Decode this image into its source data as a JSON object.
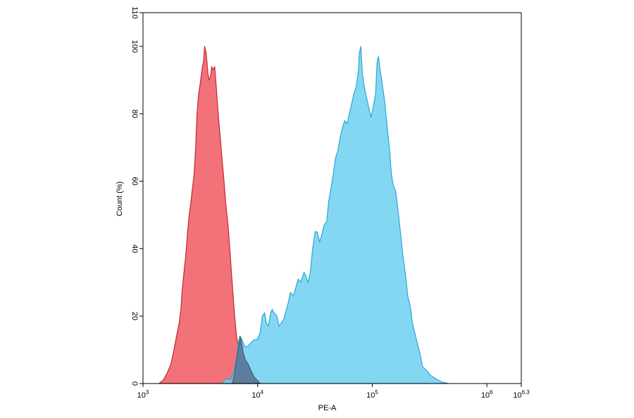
{
  "chart_data": {
    "type": "area",
    "xlabel": "PE-A",
    "ylabel": "Count (%)",
    "x_scale": "log",
    "xlim": [
      1000,
      1995262
    ],
    "ylim": [
      0,
      110
    ],
    "x_ticks": [
      {
        "base": "10",
        "exp": "3",
        "value": 1000
      },
      {
        "base": "10",
        "exp": "4",
        "value": 10000
      },
      {
        "base": "10",
        "exp": "5",
        "value": 100000
      },
      {
        "base": "10",
        "exp": "6",
        "value": 1000000
      },
      {
        "base": "10",
        "exp": "6.3",
        "value": 1995262
      }
    ],
    "y_ticks": [
      {
        "label": "0",
        "value": 0
      },
      {
        "label": "20",
        "value": 20
      },
      {
        "label": "40",
        "value": 40
      },
      {
        "label": "60",
        "value": 60
      },
      {
        "label": "80",
        "value": 80
      },
      {
        "label": "100",
        "value": 100
      },
      {
        "label": "110",
        "value": 110
      }
    ],
    "grid": false,
    "legend": "none",
    "series": [
      {
        "color": "#f2636b",
        "stroke": "#c0282e",
        "opacity": 0.9,
        "points": [
          [
            1380,
            0
          ],
          [
            1500,
            1
          ],
          [
            1620,
            3
          ],
          [
            1760,
            6
          ],
          [
            1860,
            10
          ],
          [
            1960,
            14
          ],
          [
            2070,
            18
          ],
          [
            2140,
            22
          ],
          [
            2200,
            28
          ],
          [
            2280,
            33
          ],
          [
            2360,
            38
          ],
          [
            2450,
            45
          ],
          [
            2530,
            50
          ],
          [
            2600,
            53
          ],
          [
            2680,
            57
          ],
          [
            2790,
            62
          ],
          [
            2880,
            70
          ],
          [
            2960,
            80
          ],
          [
            3060,
            86
          ],
          [
            3160,
            89
          ],
          [
            3270,
            93
          ],
          [
            3380,
            96
          ],
          [
            3450,
            100
          ],
          [
            3560,
            98
          ],
          [
            3680,
            92
          ],
          [
            3780,
            90
          ],
          [
            3880,
            91
          ],
          [
            3980,
            94
          ],
          [
            4100,
            93
          ],
          [
            4220,
            94
          ],
          [
            4400,
            86
          ],
          [
            4550,
            79
          ],
          [
            4720,
            73
          ],
          [
            4880,
            67
          ],
          [
            5060,
            61
          ],
          [
            5280,
            53
          ],
          [
            5520,
            47
          ],
          [
            5800,
            37
          ],
          [
            6050,
            28
          ],
          [
            6300,
            20
          ],
          [
            6550,
            14
          ],
          [
            6800,
            11
          ],
          [
            7100,
            9
          ],
          [
            7400,
            7
          ],
          [
            7800,
            5
          ],
          [
            8300,
            4
          ],
          [
            8800,
            3
          ],
          [
            9500,
            1.5
          ],
          [
            10500,
            0
          ]
        ]
      },
      {
        "color": "#6fd0f1",
        "stroke": "#2aa6d1",
        "opacity": 0.85,
        "points": [
          [
            4900,
            0
          ],
          [
            5200,
            1
          ],
          [
            5500,
            1.5
          ],
          [
            5800,
            1
          ],
          [
            6150,
            3
          ],
          [
            6500,
            7
          ],
          [
            6800,
            12
          ],
          [
            7000,
            14
          ],
          [
            7300,
            13
          ],
          [
            7700,
            11
          ],
          [
            8200,
            11
          ],
          [
            8700,
            12
          ],
          [
            9300,
            13
          ],
          [
            9900,
            13
          ],
          [
            10500,
            15
          ],
          [
            11000,
            20
          ],
          [
            11500,
            21
          ],
          [
            11900,
            18
          ],
          [
            12400,
            17
          ],
          [
            13000,
            21
          ],
          [
            13400,
            22
          ],
          [
            13900,
            21
          ],
          [
            14700,
            20
          ],
          [
            15400,
            17
          ],
          [
            16100,
            18
          ],
          [
            16900,
            19
          ],
          [
            17500,
            21
          ],
          [
            18500,
            24
          ],
          [
            19300,
            27
          ],
          [
            20500,
            26
          ],
          [
            21300,
            28
          ],
          [
            22600,
            31
          ],
          [
            23800,
            30
          ],
          [
            25400,
            33
          ],
          [
            26300,
            32
          ],
          [
            27500,
            30
          ],
          [
            28800,
            33
          ],
          [
            30200,
            40
          ],
          [
            31700,
            45
          ],
          [
            33100,
            45
          ],
          [
            34700,
            42
          ],
          [
            36300,
            44
          ],
          [
            38000,
            47
          ],
          [
            40000,
            48
          ],
          [
            41700,
            54
          ],
          [
            43600,
            58
          ],
          [
            45700,
            62
          ],
          [
            47900,
            67
          ],
          [
            50100,
            69
          ],
          [
            52500,
            73
          ],
          [
            55000,
            76
          ],
          [
            57500,
            78
          ],
          [
            60300,
            77
          ],
          [
            63100,
            80
          ],
          [
            66100,
            83
          ],
          [
            69200,
            86
          ],
          [
            72500,
            88
          ],
          [
            75800,
            93
          ],
          [
            77000,
            98
          ],
          [
            79400,
            100
          ],
          [
            82000,
            92
          ],
          [
            85000,
            88
          ],
          [
            89000,
            85
          ],
          [
            93000,
            82
          ],
          [
            97500,
            79
          ],
          [
            102000,
            82
          ],
          [
            107000,
            86
          ],
          [
            110000,
            95
          ],
          [
            113000,
            97
          ],
          [
            117000,
            93
          ],
          [
            122000,
            89
          ],
          [
            128000,
            84
          ],
          [
            135000,
            76
          ],
          [
            141000,
            70
          ],
          [
            147000,
            62
          ],
          [
            152000,
            59
          ],
          [
            160000,
            57
          ],
          [
            167000,
            52
          ],
          [
            176000,
            45
          ],
          [
            185000,
            38
          ],
          [
            195000,
            32
          ],
          [
            204000,
            26
          ],
          [
            214000,
            23
          ],
          [
            224000,
            18
          ],
          [
            235000,
            15
          ],
          [
            247000,
            12
          ],
          [
            260000,
            9
          ],
          [
            275000,
            5
          ],
          [
            295000,
            4
          ],
          [
            320000,
            2.5
          ],
          [
            355000,
            1.5
          ],
          [
            400000,
            0.5
          ],
          [
            460000,
            0
          ]
        ]
      },
      {
        "color": "#5c7a9a",
        "stroke": "#3e5d7f",
        "opacity": 0.95,
        "points": [
          [
            6000,
            0
          ],
          [
            6300,
            3
          ],
          [
            6600,
            8
          ],
          [
            6850,
            11
          ],
          [
            7050,
            14
          ],
          [
            7250,
            12
          ],
          [
            7500,
            9
          ],
          [
            7800,
            7
          ],
          [
            8200,
            6
          ],
          [
            8700,
            4
          ],
          [
            9300,
            2
          ],
          [
            9900,
            1
          ],
          [
            10500,
            0
          ]
        ]
      }
    ]
  }
}
